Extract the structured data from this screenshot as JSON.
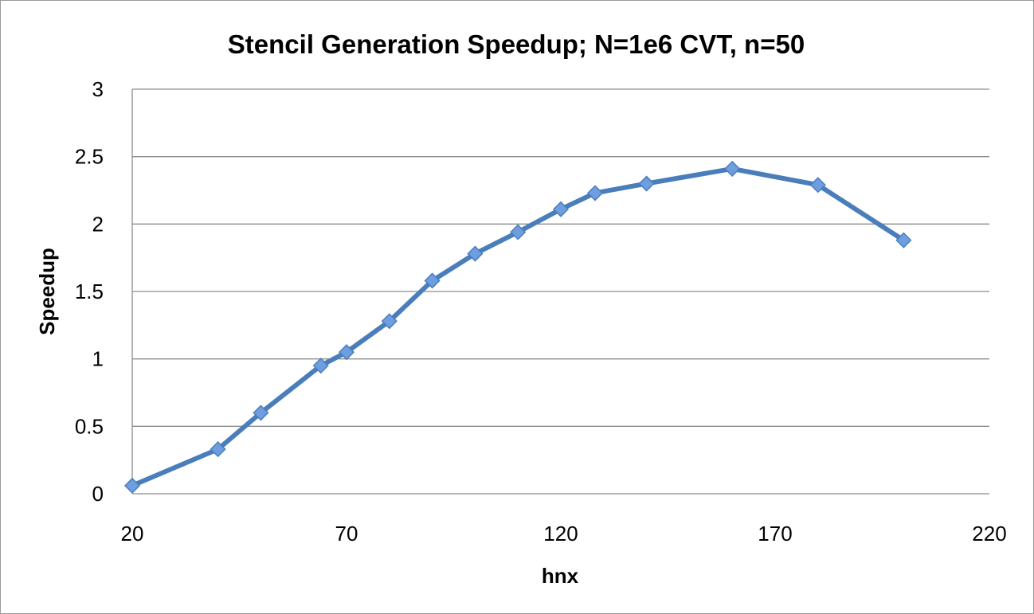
{
  "chart_data": {
    "type": "line",
    "title": "Stencil Generation Speedup; N=1e6 CVT, n=50",
    "xlabel": "hnx",
    "ylabel": "Speedup",
    "xlim": [
      20,
      220
    ],
    "ylim": [
      0,
      3
    ],
    "xticks": [
      "20",
      "70",
      "120",
      "170",
      "220"
    ],
    "yticks": [
      "0",
      "0.5",
      "1",
      "1.5",
      "2",
      "2.5",
      "3"
    ],
    "grid": "horizontal",
    "colors": {
      "series": "#4a7ebb",
      "marker": "#6f9ee0",
      "grid": "#8c8c8c",
      "axis": "#8c8c8c"
    },
    "series": [
      {
        "x": [
          20,
          40,
          50,
          64,
          70,
          80,
          90,
          100,
          110,
          120,
          128,
          140,
          160,
          180,
          200
        ],
        "y": [
          0.06,
          0.33,
          0.6,
          0.95,
          1.05,
          1.28,
          1.58,
          1.78,
          1.94,
          2.11,
          2.23,
          2.3,
          2.41,
          2.29,
          1.88
        ]
      }
    ]
  }
}
